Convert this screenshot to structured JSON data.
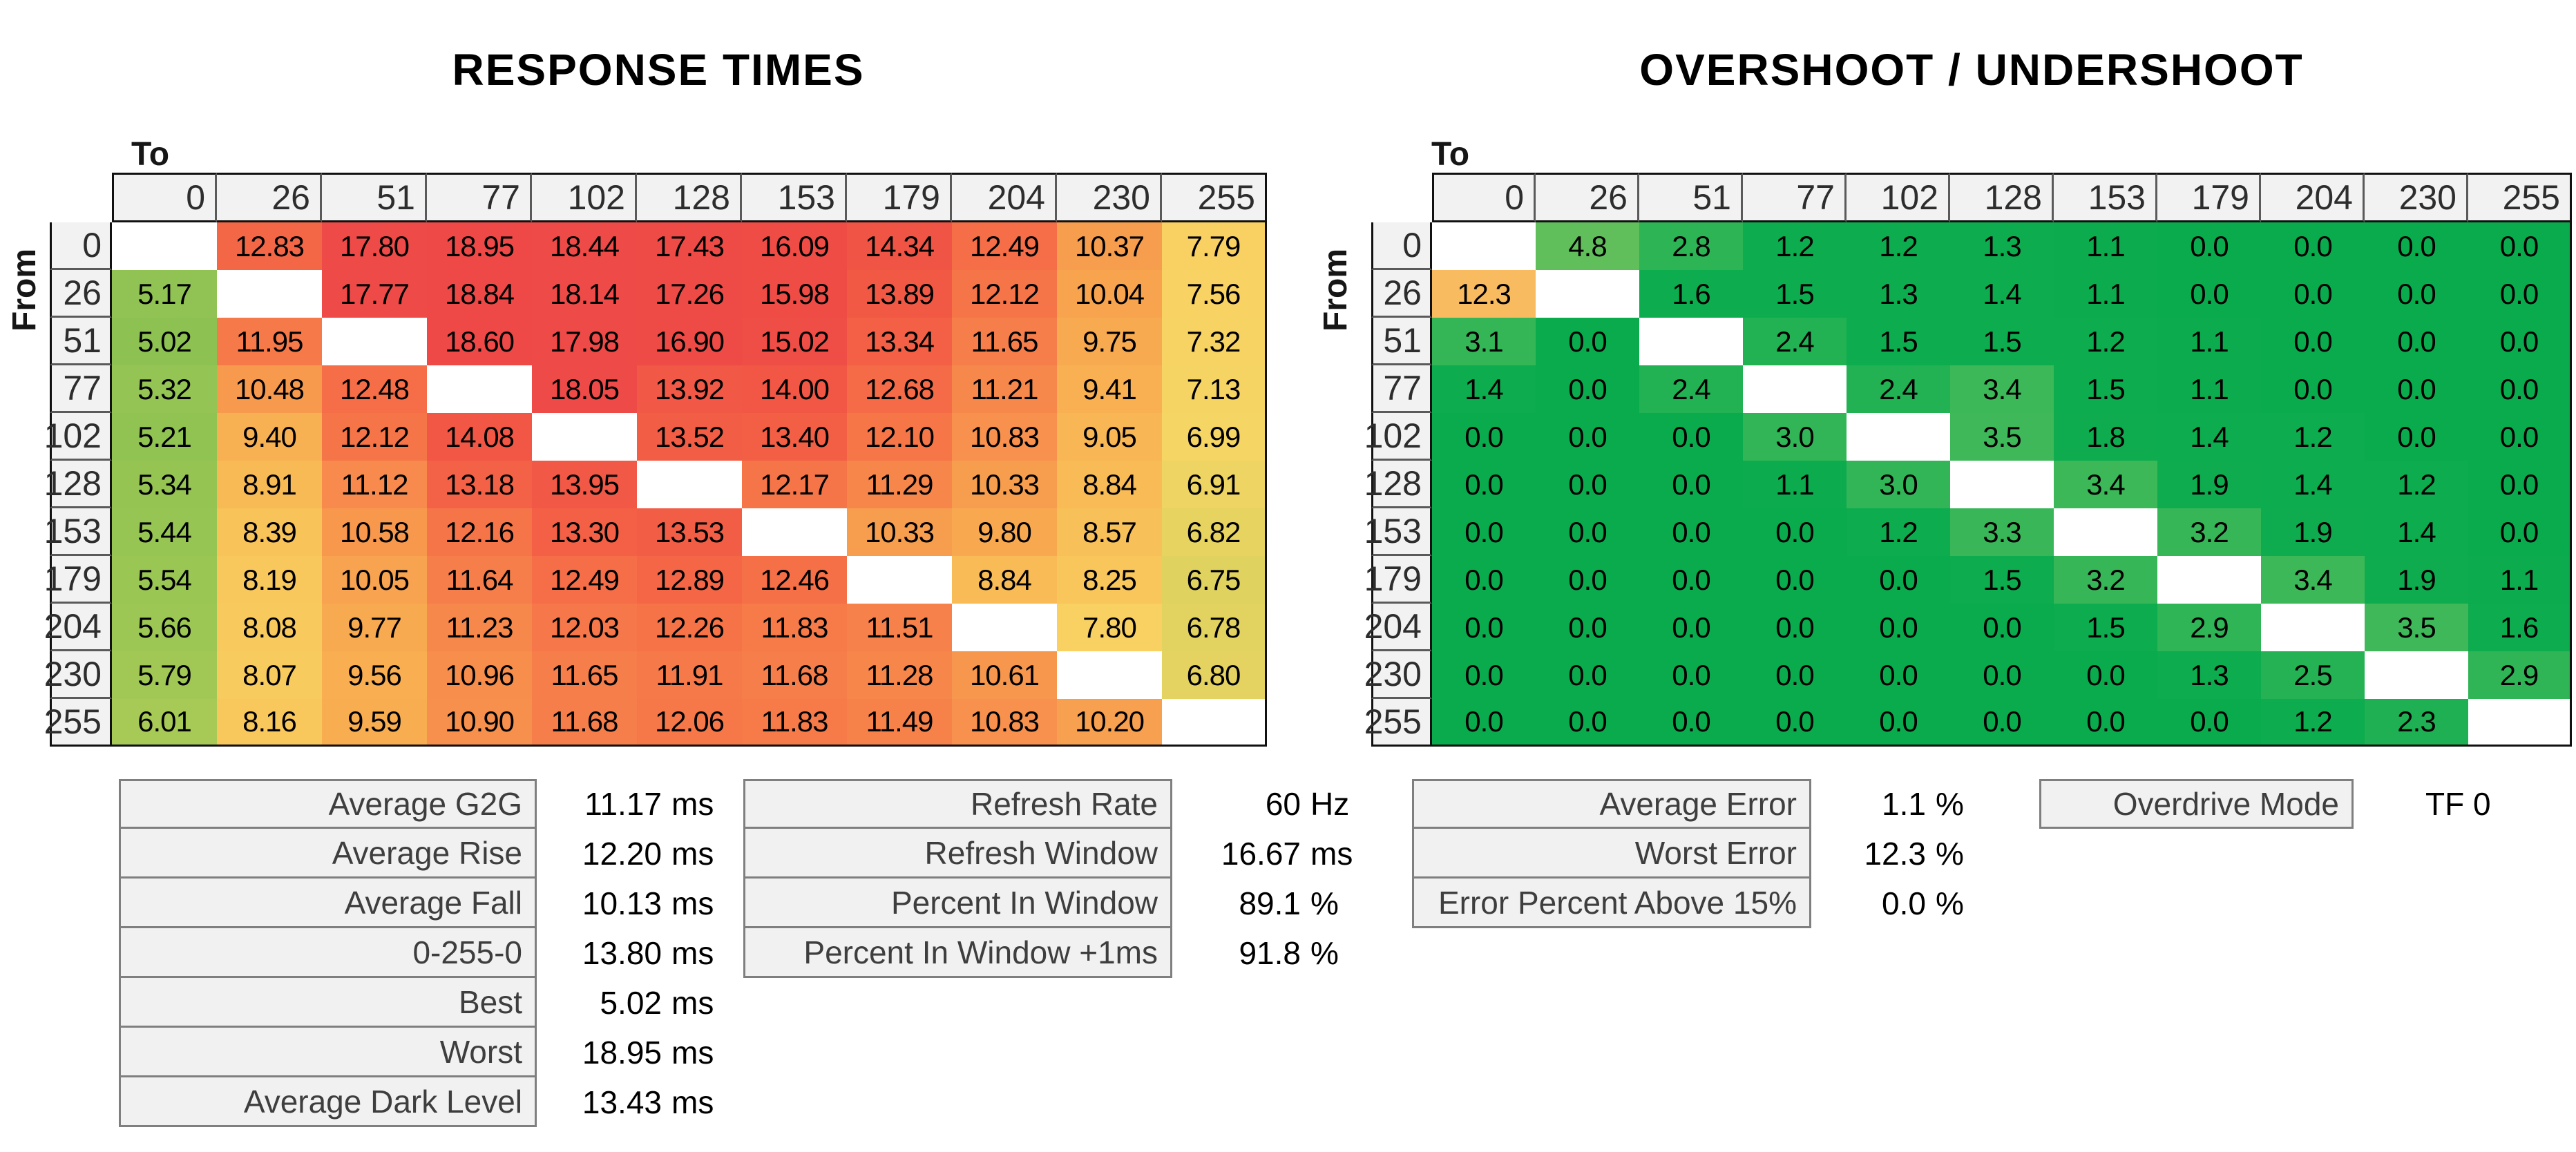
{
  "axis": {
    "to": "To",
    "from": "From"
  },
  "levels": [
    "0",
    "26",
    "51",
    "77",
    "102",
    "128",
    "153",
    "179",
    "204",
    "230",
    "255"
  ],
  "chart_data": [
    {
      "type": "heatmap",
      "title": "RESPONSE TIMES",
      "unit": "ms",
      "xlabel": "To",
      "ylabel": "From",
      "x": [
        0,
        26,
        51,
        77,
        102,
        128,
        153,
        179,
        204,
        230,
        255
      ],
      "y": [
        0,
        26,
        51,
        77,
        102,
        128,
        153,
        179,
        204,
        230,
        255
      ],
      "values": [
        [
          null,
          "12.83",
          "17.80",
          "18.95",
          "18.44",
          "17.43",
          "16.09",
          "14.34",
          "12.49",
          "10.37",
          "7.79"
        ],
        [
          "5.17",
          null,
          "17.77",
          "18.84",
          "18.14",
          "17.26",
          "15.98",
          "13.89",
          "12.12",
          "10.04",
          "7.56"
        ],
        [
          "5.02",
          "11.95",
          null,
          "18.60",
          "17.98",
          "16.90",
          "15.02",
          "13.34",
          "11.65",
          "9.75",
          "7.32"
        ],
        [
          "5.32",
          "10.48",
          "12.48",
          null,
          "18.05",
          "13.92",
          "14.00",
          "12.68",
          "11.21",
          "9.41",
          "7.13"
        ],
        [
          "5.21",
          "9.40",
          "12.12",
          "14.08",
          null,
          "13.52",
          "13.40",
          "12.10",
          "10.83",
          "9.05",
          "6.99"
        ],
        [
          "5.34",
          "8.91",
          "11.12",
          "13.18",
          "13.95",
          null,
          "12.17",
          "11.29",
          "10.33",
          "8.84",
          "6.91"
        ],
        [
          "5.44",
          "8.39",
          "10.58",
          "12.16",
          "13.30",
          "13.53",
          null,
          "10.33",
          "9.80",
          "8.57",
          "6.82"
        ],
        [
          "5.54",
          "8.19",
          "10.05",
          "11.64",
          "12.49",
          "12.89",
          "12.46",
          null,
          "8.84",
          "8.25",
          "6.75"
        ],
        [
          "5.66",
          "8.08",
          "9.77",
          "11.23",
          "12.03",
          "12.26",
          "11.83",
          "11.51",
          null,
          "7.80",
          "6.78"
        ],
        [
          "5.79",
          "8.07",
          "9.56",
          "10.96",
          "11.65",
          "11.91",
          "11.68",
          "11.28",
          "10.61",
          null,
          "6.80"
        ],
        [
          "6.01",
          "8.16",
          "9.59",
          "10.90",
          "11.68",
          "12.06",
          "11.83",
          "11.49",
          "10.83",
          "10.20",
          null
        ]
      ]
    },
    {
      "type": "heatmap",
      "title": "OVERSHOOT / UNDERSHOOT",
      "unit": "%",
      "xlabel": "To",
      "ylabel": "From",
      "x": [
        0,
        26,
        51,
        77,
        102,
        128,
        153,
        179,
        204,
        230,
        255
      ],
      "y": [
        0,
        26,
        51,
        77,
        102,
        128,
        153,
        179,
        204,
        230,
        255
      ],
      "values": [
        [
          null,
          "4.8",
          "2.8",
          "1.2",
          "1.2",
          "1.3",
          "1.1",
          "0.0",
          "0.0",
          "0.0",
          "0.0"
        ],
        [
          "12.3",
          null,
          "1.6",
          "1.5",
          "1.3",
          "1.4",
          "1.1",
          "0.0",
          "0.0",
          "0.0",
          "0.0"
        ],
        [
          "3.1",
          "0.0",
          null,
          "2.4",
          "1.5",
          "1.5",
          "1.2",
          "1.1",
          "0.0",
          "0.0",
          "0.0"
        ],
        [
          "1.4",
          "0.0",
          "2.4",
          null,
          "2.4",
          "3.4",
          "1.5",
          "1.1",
          "0.0",
          "0.0",
          "0.0"
        ],
        [
          "0.0",
          "0.0",
          "0.0",
          "3.0",
          null,
          "3.5",
          "1.8",
          "1.4",
          "1.2",
          "0.0",
          "0.0"
        ],
        [
          "0.0",
          "0.0",
          "0.0",
          "1.1",
          "3.0",
          null,
          "3.4",
          "1.9",
          "1.4",
          "1.2",
          "0.0"
        ],
        [
          "0.0",
          "0.0",
          "0.0",
          "0.0",
          "1.2",
          "3.3",
          null,
          "3.2",
          "1.9",
          "1.4",
          "0.0"
        ],
        [
          "0.0",
          "0.0",
          "0.0",
          "0.0",
          "0.0",
          "1.5",
          "3.2",
          null,
          "3.4",
          "1.9",
          "1.1"
        ],
        [
          "0.0",
          "0.0",
          "0.0",
          "0.0",
          "0.0",
          "0.0",
          "1.5",
          "2.9",
          null,
          "3.5",
          "1.6"
        ],
        [
          "0.0",
          "0.0",
          "0.0",
          "0.0",
          "0.0",
          "0.0",
          "0.0",
          "1.3",
          "2.5",
          null,
          "2.9"
        ],
        [
          "0.0",
          "0.0",
          "0.0",
          "0.0",
          "0.0",
          "0.0",
          "0.0",
          "0.0",
          "1.2",
          "2.3",
          null
        ]
      ]
    }
  ],
  "stats_groups": [
    {
      "id": "response-summary",
      "rows": [
        {
          "label": "Average G2G",
          "value": "11.17",
          "unit": "ms"
        },
        {
          "label": "Average Rise",
          "value": "12.20",
          "unit": "ms"
        },
        {
          "label": "Average Fall",
          "value": "10.13",
          "unit": "ms"
        },
        {
          "label": "0-255-0",
          "value": "13.80",
          "unit": "ms"
        },
        {
          "label": "Best",
          "value": "5.02",
          "unit": "ms"
        },
        {
          "label": "Worst",
          "value": "18.95",
          "unit": "ms"
        },
        {
          "label": "Average Dark Level",
          "value": "13.43",
          "unit": "ms"
        }
      ]
    },
    {
      "id": "refresh-summary",
      "rows": [
        {
          "label": "Refresh Rate",
          "value": "60",
          "unit": "Hz"
        },
        {
          "label": "Refresh Window",
          "value": "16.67",
          "unit": "ms"
        },
        {
          "label": "Percent In Window",
          "value": "89.1",
          "unit": "%"
        },
        {
          "label": "Percent In Window +1ms",
          "value": "91.8",
          "unit": "%"
        }
      ]
    },
    {
      "id": "error-summary",
      "rows": [
        {
          "label": "Average Error",
          "value": "1.1",
          "unit": "%"
        },
        {
          "label": "Worst Error",
          "value": "12.3",
          "unit": "%"
        },
        {
          "label": "Error Percent Above 15%",
          "value": "0.0",
          "unit": "%"
        }
      ]
    },
    {
      "id": "overdrive-summary",
      "rows": [
        {
          "label": "Overdrive Mode",
          "value": "TF 0",
          "unit": ""
        }
      ]
    }
  ],
  "colors": {
    "background": "#ffffff",
    "header_fill": "#f2f2f2",
    "stats_fill": "#f1f1f1",
    "stats_border": "#7f7f7f",
    "grid_border": "#111111",
    "response_scale": [
      [
        5.0,
        "#8CC252"
      ],
      [
        6.0,
        "#A6C956"
      ],
      [
        6.6,
        "#D2D05C"
      ],
      [
        7.0,
        "#F6D564"
      ],
      [
        7.8,
        "#F9D163"
      ],
      [
        8.3,
        "#F8C55A"
      ],
      [
        9.0,
        "#F8B854"
      ],
      [
        9.7,
        "#F8AB50"
      ],
      [
        10.4,
        "#F79C4E"
      ],
      [
        11.0,
        "#F78D4C"
      ],
      [
        11.6,
        "#F67F4A"
      ],
      [
        12.2,
        "#F67448"
      ],
      [
        12.9,
        "#F46646"
      ],
      [
        13.6,
        "#F25C45"
      ],
      [
        14.3,
        "#F05444"
      ],
      [
        15.2,
        "#EF4D46"
      ],
      [
        19.0,
        "#EE4947"
      ]
    ],
    "overshoot_scale": [
      [
        0.0,
        "#0AAB4D"
      ],
      [
        1.9,
        "#0EAC4E"
      ],
      [
        2.4,
        "#22B153"
      ],
      [
        3.0,
        "#31B556"
      ],
      [
        3.6,
        "#42B959"
      ],
      [
        4.8,
        "#60BF5B"
      ],
      [
        6.5,
        "#AACB60"
      ],
      [
        9.0,
        "#F0D065"
      ],
      [
        11.0,
        "#F8C561"
      ],
      [
        12.3,
        "#F9BB5F"
      ],
      [
        15.0,
        "#EF4D47"
      ]
    ]
  }
}
